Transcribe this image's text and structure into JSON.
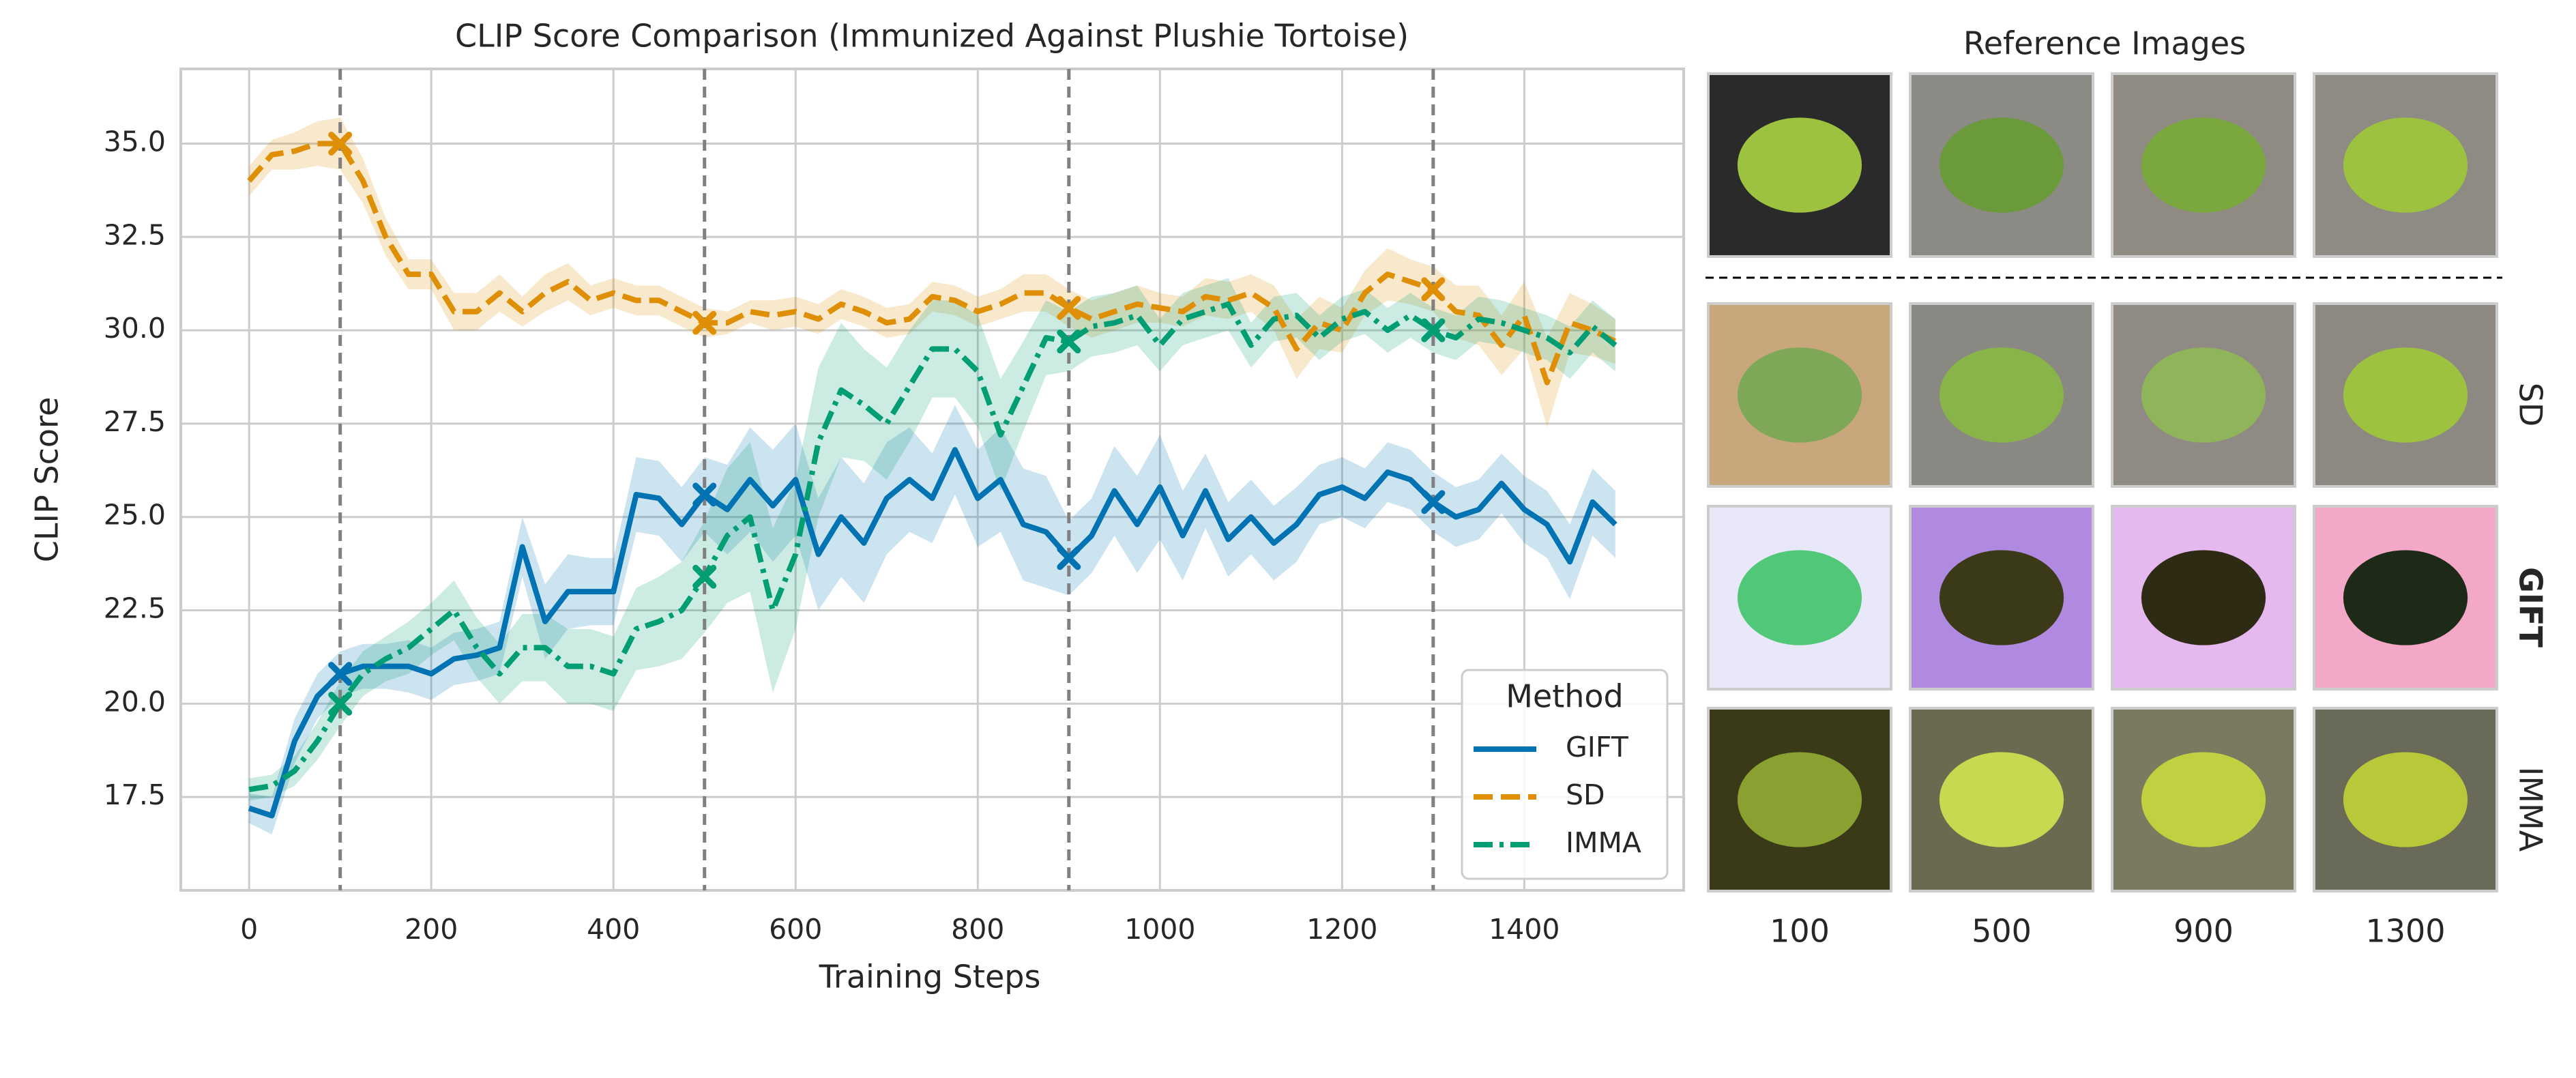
{
  "chart_data": {
    "type": "line",
    "title": "CLIP Score Comparison (Immunized Against Plushie Tortoise)",
    "xlabel": "Training Steps",
    "ylabel": "CLIP Score",
    "xlim": [
      -75,
      1575
    ],
    "ylim": [
      15,
      37
    ],
    "xticks": [
      0,
      200,
      400,
      600,
      800,
      1000,
      1200,
      1400
    ],
    "yticks": [
      17.5,
      {
        "value": 20,
        "label": "20.0"
      },
      22.5,
      {
        "value": 25,
        "label": "25.0"
      },
      27.5,
      {
        "value": 30,
        "label": "30.0"
      },
      32.5,
      {
        "value": 35,
        "label": "35.0"
      }
    ],
    "grid": true,
    "vlines": [
      100,
      500,
      900,
      1300
    ],
    "legend": {
      "title": "Method",
      "loc": "lower right"
    },
    "x": [
      0,
      25,
      50,
      75,
      100,
      125,
      150,
      175,
      200,
      225,
      250,
      275,
      300,
      325,
      350,
      375,
      400,
      425,
      450,
      475,
      500,
      525,
      550,
      575,
      600,
      625,
      650,
      675,
      700,
      725,
      750,
      775,
      800,
      825,
      850,
      875,
      900,
      925,
      950,
      975,
      1000,
      1025,
      1050,
      1075,
      1100,
      1125,
      1150,
      1175,
      1200,
      1225,
      1250,
      1275,
      1300,
      1325,
      1350,
      1375,
      1400,
      1425,
      1450,
      1475,
      1500
    ],
    "series": [
      {
        "name": "GIFT",
        "color": "#0173b2",
        "linestyle": "solid",
        "values": [
          17.2,
          17.0,
          19.0,
          20.2,
          20.8,
          21.0,
          21.0,
          21.0,
          20.8,
          21.2,
          21.3,
          21.5,
          24.2,
          22.2,
          23.0,
          23.0,
          23.0,
          25.6,
          25.5,
          24.8,
          25.6,
          25.2,
          26.0,
          25.3,
          26.0,
          24.0,
          25.0,
          24.3,
          25.5,
          26.0,
          25.5,
          26.8,
          25.5,
          26.0,
          24.8,
          24.6,
          23.9,
          24.5,
          25.7,
          24.8,
          25.8,
          24.5,
          25.7,
          24.4,
          25.0,
          24.3,
          24.8,
          25.6,
          25.8,
          25.5,
          26.2,
          26.0,
          25.4,
          25.0,
          25.2,
          25.9,
          25.2,
          24.8,
          23.8,
          25.4,
          24.8
        ],
        "spread": [
          0.4,
          0.5,
          0.6,
          0.6,
          0.6,
          0.6,
          0.6,
          0.7,
          0.7,
          0.7,
          0.7,
          0.7,
          0.8,
          1.0,
          1.0,
          0.9,
          0.9,
          1.0,
          1.0,
          1.0,
          1.0,
          1.2,
          1.4,
          1.5,
          1.5,
          1.5,
          1.6,
          1.6,
          1.5,
          1.4,
          1.2,
          1.2,
          1.3,
          1.4,
          1.5,
          1.5,
          1.0,
          1.0,
          1.2,
          1.3,
          1.4,
          1.2,
          1.0,
          1.0,
          1.0,
          1.0,
          1.0,
          0.8,
          0.8,
          0.8,
          0.8,
          0.8,
          0.8,
          0.8,
          0.8,
          0.8,
          0.9,
          0.9,
          1.0,
          0.9,
          0.9
        ]
      },
      {
        "name": "SD",
        "color": "#de8f05",
        "linestyle": "dashed",
        "values": [
          34.0,
          34.7,
          34.8,
          35.0,
          35.0,
          34.0,
          32.5,
          31.5,
          31.5,
          30.5,
          30.5,
          31.0,
          30.5,
          31.0,
          31.3,
          30.8,
          31.0,
          30.8,
          30.8,
          30.5,
          30.2,
          30.2,
          30.5,
          30.4,
          30.5,
          30.3,
          30.7,
          30.5,
          30.2,
          30.3,
          30.9,
          30.8,
          30.5,
          30.7,
          31.0,
          31.0,
          30.6,
          30.3,
          30.5,
          30.7,
          30.6,
          30.5,
          30.9,
          30.8,
          31.0,
          30.6,
          29.5,
          30.2,
          30.0,
          31.0,
          31.5,
          31.3,
          31.1,
          30.5,
          30.4,
          29.6,
          30.4,
          28.6,
          30.2,
          30.0,
          29.7
        ],
        "spread": [
          0.4,
          0.4,
          0.5,
          0.6,
          0.7,
          0.6,
          0.5,
          0.4,
          0.4,
          0.5,
          0.5,
          0.5,
          0.4,
          0.5,
          0.5,
          0.4,
          0.4,
          0.4,
          0.4,
          0.4,
          0.4,
          0.3,
          0.3,
          0.4,
          0.4,
          0.4,
          0.4,
          0.4,
          0.4,
          0.4,
          0.4,
          0.4,
          0.4,
          0.4,
          0.5,
          0.5,
          0.5,
          0.5,
          0.5,
          0.5,
          0.4,
          0.4,
          0.5,
          0.5,
          0.5,
          0.6,
          0.8,
          0.7,
          0.6,
          0.6,
          0.7,
          0.6,
          0.6,
          0.7,
          0.8,
          0.8,
          0.9,
          1.2,
          0.8,
          0.7,
          0.6
        ]
      },
      {
        "name": "IMMA",
        "color": "#029e73",
        "linestyle": "dashdot",
        "values": [
          17.7,
          17.8,
          18.2,
          19.0,
          20.0,
          20.8,
          21.2,
          21.5,
          22.0,
          22.5,
          21.5,
          20.8,
          21.5,
          21.5,
          21.0,
          21.0,
          20.8,
          22.0,
          22.2,
          22.5,
          23.4,
          24.5,
          25.0,
          22.5,
          24.0,
          27.0,
          28.4,
          28.0,
          27.5,
          28.5,
          29.5,
          29.5,
          28.9,
          27.2,
          28.5,
          29.8,
          29.7,
          30.1,
          30.2,
          30.4,
          29.6,
          30.3,
          30.5,
          30.7,
          29.6,
          30.3,
          30.4,
          29.8,
          30.3,
          30.5,
          30.0,
          30.4,
          30.0,
          29.8,
          30.3,
          30.2,
          30.0,
          29.8,
          29.4,
          30.1,
          29.6
        ],
        "spread": [
          0.3,
          0.3,
          0.4,
          0.5,
          0.6,
          0.6,
          0.6,
          0.7,
          0.7,
          0.8,
          0.8,
          0.8,
          0.9,
          0.9,
          1.0,
          1.0,
          1.0,
          1.1,
          1.2,
          1.3,
          1.5,
          1.8,
          2.0,
          2.2,
          2.0,
          2.0,
          1.8,
          1.5,
          1.5,
          1.5,
          1.3,
          1.3,
          1.5,
          1.5,
          1.2,
          1.0,
          0.8,
          0.8,
          0.8,
          0.8,
          0.7,
          0.7,
          0.7,
          0.7,
          0.6,
          0.6,
          0.6,
          0.6,
          0.6,
          0.6,
          0.6,
          0.6,
          0.6,
          0.6,
          0.6,
          0.6,
          0.6,
          0.6,
          0.7,
          0.7,
          0.7
        ]
      }
    ]
  },
  "image_grid": {
    "title": "Reference Images",
    "row_labels": [
      "SD",
      "GIFT",
      "IMMA"
    ],
    "column_labels": [
      "100",
      "500",
      "900",
      "1300"
    ]
  }
}
